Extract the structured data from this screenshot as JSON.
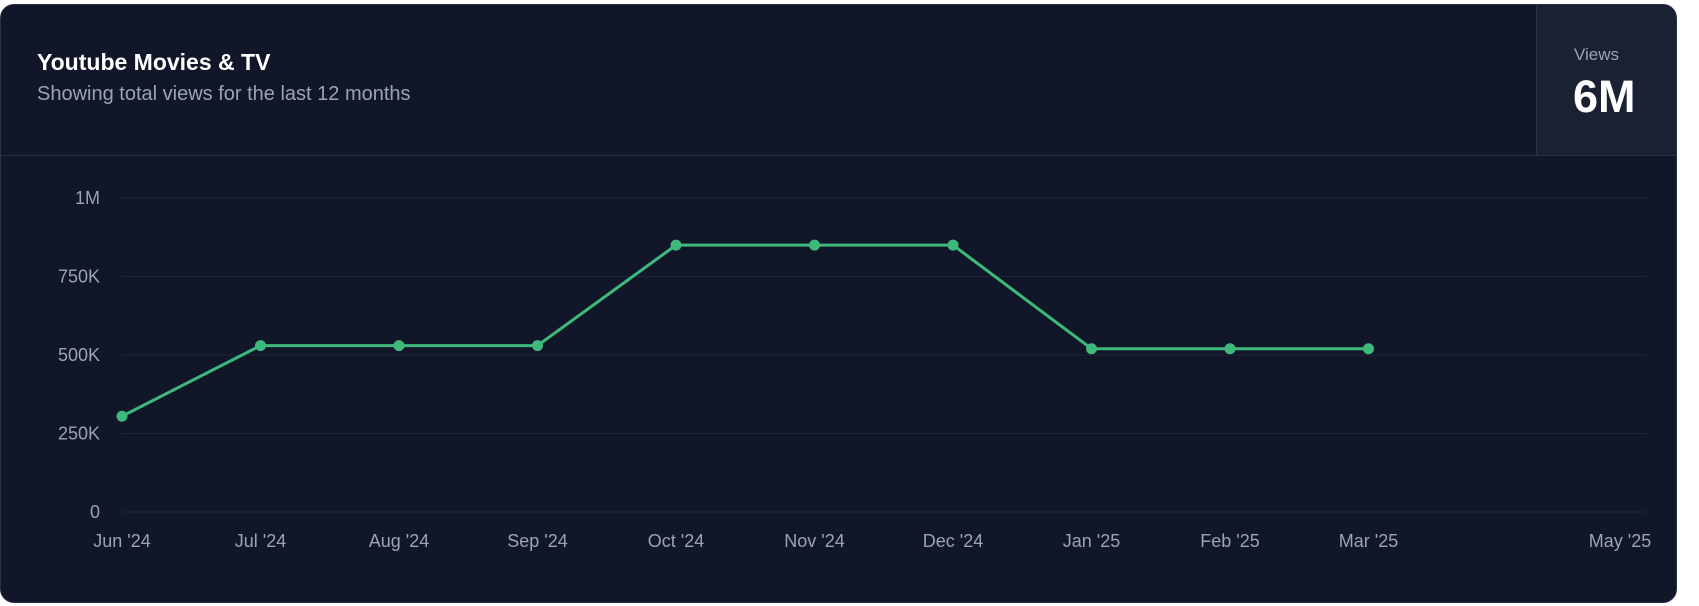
{
  "card": {
    "title": "Youtube Movies & TV",
    "subtitle": "Showing total views for the last 12 months",
    "stat_label": "Views",
    "stat_value": "6M"
  },
  "colors": {
    "background": "#111729",
    "line": "#3fb97b",
    "grid": "#1f2637",
    "text_muted": "#9aa4b6"
  },
  "chart_data": {
    "type": "line",
    "x": [
      "Jun '24",
      "Jul '24",
      "Aug '24",
      "Sep '24",
      "Oct '24",
      "Nov '24",
      "Dec '24",
      "Jan '25",
      "Feb '25",
      "Mar '25"
    ],
    "x_ticks": [
      "Jun '24",
      "Jul '24",
      "Aug '24",
      "Sep '24",
      "Oct '24",
      "Nov '24",
      "Dec '24",
      "Jan '25",
      "Feb '25",
      "Mar '25",
      "May '25"
    ],
    "series": [
      {
        "values": [
          305000,
          530000,
          530000,
          530000,
          850000,
          850000,
          850000,
          520000,
          520000,
          520000
        ]
      }
    ],
    "y_ticks": [
      0,
      250000,
      500000,
      750000,
      1000000
    ],
    "y_tick_labels": [
      "0",
      "250K",
      "500K",
      "750K",
      "1M"
    ],
    "ylim": [
      0,
      1000000
    ],
    "grid": true
  }
}
